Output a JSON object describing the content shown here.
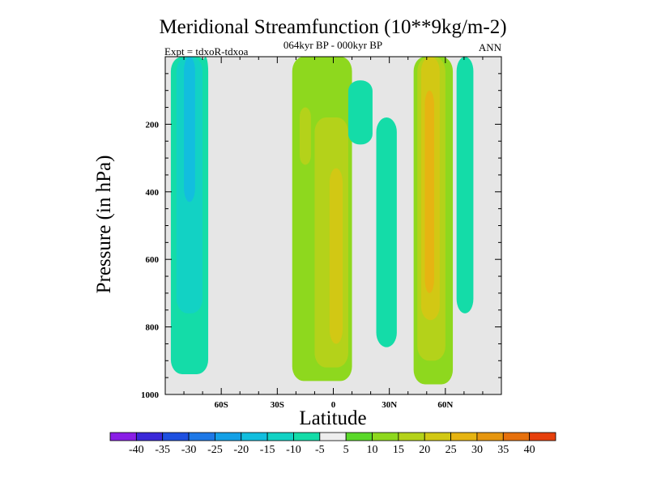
{
  "chart_data": {
    "type": "heatmap",
    "title": "Meridional Streamfunction (10**9kg/m-2)",
    "subtitle": "064kyr BP - 000kyr BP",
    "left_note": "Expt = tdxoR-tdxoa",
    "right_note": "ANN",
    "xlabel": "Latitude",
    "ylabel": "Pressure (in hPa)",
    "xlim": [
      -90,
      90
    ],
    "ylim": [
      1000,
      0
    ],
    "y_reversed": true,
    "x_ticks": [
      {
        "value": -60,
        "label": "60S"
      },
      {
        "value": -30,
        "label": "30S"
      },
      {
        "value": 0,
        "label": "0"
      },
      {
        "value": 30,
        "label": "30N"
      },
      {
        "value": 60,
        "label": "60N"
      }
    ],
    "y_ticks": [
      {
        "value": 200,
        "label": "200"
      },
      {
        "value": 400,
        "label": "400"
      },
      {
        "value": 600,
        "label": "600"
      },
      {
        "value": 800,
        "label": "800"
      },
      {
        "value": 1000,
        "label": "1000"
      }
    ],
    "background_color": "#e6e6e6",
    "colorbar": {
      "levels": [
        "-40",
        "-35",
        "-30",
        "-25",
        "-20",
        "-15",
        "-10",
        "-5",
        "5",
        "10",
        "15",
        "20",
        "25",
        "30",
        "35",
        "40"
      ],
      "colors": [
        "#8a1ee6",
        "#3a28d8",
        "#1e50e0",
        "#1e78e6",
        "#14a0e6",
        "#12bede",
        "#12d2c4",
        "#14dca8",
        "#eeeeee",
        "#5ad82a",
        "#8ed81e",
        "#b4d21a",
        "#d2c814",
        "#e6b412",
        "#e6960f",
        "#e6700c",
        "#e6400c"
      ]
    },
    "regions": [
      {
        "value": -10,
        "lat_min": -87,
        "lat_max": -67,
        "p_top": 0,
        "p_bottom": 940
      },
      {
        "value": -15,
        "lat_min": -84,
        "lat_max": -70,
        "p_top": 0,
        "p_bottom": 760
      },
      {
        "value": -20,
        "lat_min": -80,
        "lat_max": -74,
        "p_top": 0,
        "p_bottom": 430
      },
      {
        "value": -10,
        "lat_min": -70,
        "lat_max": -67,
        "p_top": 0,
        "p_bottom": 790
      },
      {
        "value": 10,
        "lat_min": -22,
        "lat_max": 10,
        "p_top": 0,
        "p_bottom": 960
      },
      {
        "value": 15,
        "lat_min": -10,
        "lat_max": 8,
        "p_top": 180,
        "p_bottom": 920
      },
      {
        "value": 20,
        "lat_min": -2,
        "lat_max": 5,
        "p_top": 330,
        "p_bottom": 850
      },
      {
        "value": 15,
        "lat_min": -18,
        "lat_max": -12,
        "p_top": 150,
        "p_bottom": 320
      },
      {
        "value": -10,
        "lat_min": 8,
        "lat_max": 21,
        "p_top": 70,
        "p_bottom": 260
      },
      {
        "value": -10,
        "lat_min": 23,
        "lat_max": 34,
        "p_top": 180,
        "p_bottom": 860
      },
      {
        "value": 10,
        "lat_min": 43,
        "lat_max": 64,
        "p_top": 0,
        "p_bottom": 970
      },
      {
        "value": 15,
        "lat_min": 45,
        "lat_max": 60,
        "p_top": 0,
        "p_bottom": 900
      },
      {
        "value": 20,
        "lat_min": 47,
        "lat_max": 57,
        "p_top": 0,
        "p_bottom": 780
      },
      {
        "value": 25,
        "lat_min": 49,
        "lat_max": 54,
        "p_top": 100,
        "p_bottom": 700
      },
      {
        "value": -10,
        "lat_min": 66,
        "lat_max": 75,
        "p_top": 0,
        "p_bottom": 760
      }
    ]
  }
}
